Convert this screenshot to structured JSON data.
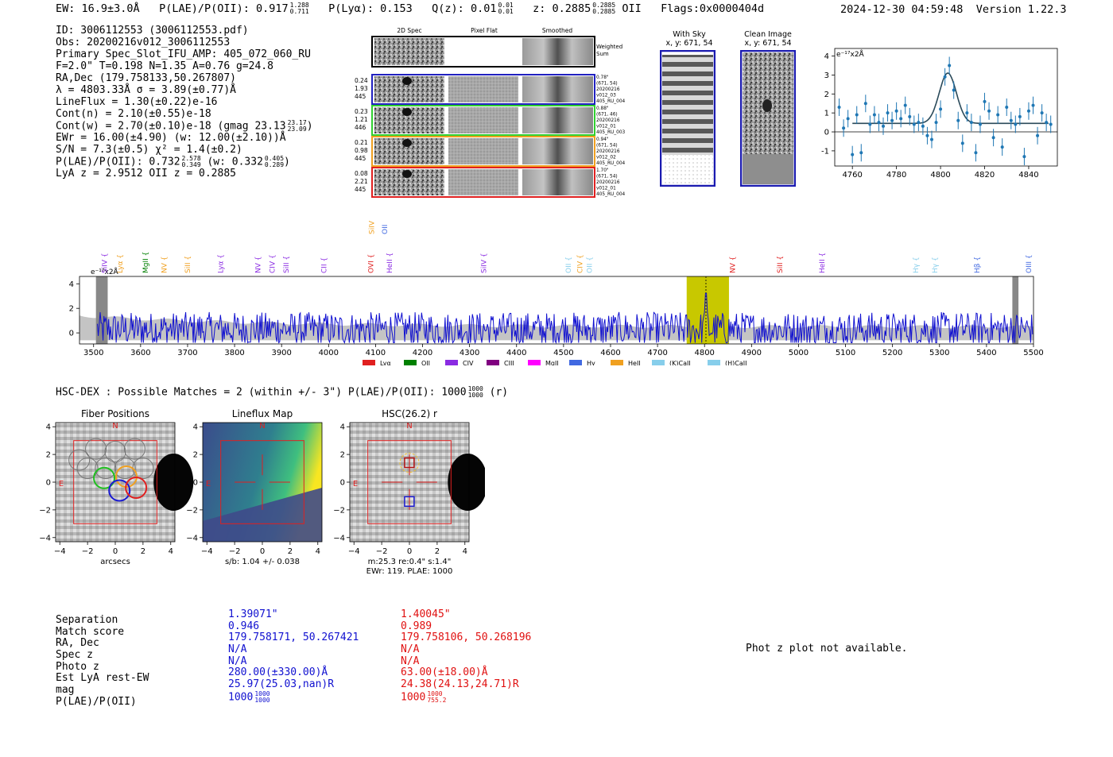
{
  "header": {
    "ew": "EW: 16.9±3.0Å",
    "plae_label": "P(LAE)/P(OII): 0.917",
    "plae_hi": "1.288",
    "plae_lo": "0.711",
    "plya": "P(Lyα): 0.153",
    "qz_label": "Q(z): 0.01",
    "qz_hi": "0.01",
    "qz_lo": "0.01",
    "z_label": "z: 0.2885",
    "z_hi": "0.2885",
    "z_lo": "0.2885",
    "z_line": "OII",
    "flags": "Flags:0x0000404d",
    "timestamp": "2024-12-30 04:59:48",
    "version": "Version 1.22.3"
  },
  "info": {
    "id": "ID: 3006112553 (3006112553.pdf)",
    "obs": "Obs: 20200216v012_3006112553",
    "primary": "Primary Spec_Slot_IFU_AMP: 405_072_060_RU",
    "fiber": "F=2.0\"  T=0.198  N=1.35  A=0.76  g=24.8",
    "radec": "RA,Dec (179.758133,50.267807)",
    "lambda": "λ = 4803.33Å  σ = 3.89(±0.77)Å",
    "lineflux": "LineFlux = 1.30(±0.22)e-16",
    "contn": "Cont(n) = 2.10(±0.55)e-18",
    "contw": "Cont(w) = 2.70(±0.10)e-18 (gmag 23.13",
    "contw_hi": "23.17",
    "contw_lo": "23.09",
    "ewr": "EWr = 16.00(±4.90) (w: 12.00(±2.10))Å",
    "sn": "S/N = 7.3(±0.5)  χ² = 1.4(±0.2)",
    "plae": "P(LAE)/P(OII): 0.732",
    "plae_hi": "2.578",
    "plae_lo": "0.349",
    "plae_w": "(w: 0.332",
    "plae_w_hi": "0.405",
    "plae_w_lo": "0.289",
    "lya_z": "LyA z = 2.9512   OII z = 0.2885"
  },
  "cutouts": {
    "col_2d": "2D Spec",
    "col_flat": "Pixel Flat",
    "col_smooth": "Smoothed",
    "weighted": "Weighted\nSum",
    "rows": [
      {
        "left": [
          "0.24",
          "1.93",
          "445"
        ],
        "right": [
          "0.78\"",
          "(671, 54)",
          "20200216",
          "v012_03",
          "405_RU_004"
        ],
        "color": "#2020c0"
      },
      {
        "left": [
          "0.23",
          "1.21",
          "446"
        ],
        "right": [
          "0.88\"",
          "(671, 46)",
          "20200216",
          "v012_01",
          "405_RU_003"
        ],
        "color": "#30d030"
      },
      {
        "left": [
          "0.21",
          "0.98",
          "445"
        ],
        "right": [
          "0.94\"",
          "(671, 54)",
          "20200216",
          "v012_02",
          "405_RU_004"
        ],
        "color": "#f0a020"
      },
      {
        "left": [
          "0.08",
          "2.21",
          "445"
        ],
        "right": [
          "1.70\"",
          "(671, 54)",
          "20200216",
          "v012_01",
          "405_RU_004"
        ],
        "color": "#e02020"
      }
    ],
    "with_sky": "With Sky",
    "with_sky_xy": "x, y: 671, 54",
    "clean": "Clean Image",
    "clean_xy": "x, y: 671, 54"
  },
  "zoom_chart": {
    "type": "line",
    "unit_label": "e⁻¹⁷x2Å",
    "xlim": [
      4752,
      4853
    ],
    "ylim": [
      -1.8,
      4.4
    ],
    "xticks": [
      4760,
      4780,
      4800,
      4820,
      4840
    ],
    "yticks": [
      -1,
      0,
      1,
      2,
      3,
      4
    ],
    "x": [
      4754,
      4756,
      4758,
      4760,
      4762,
      4764,
      4766,
      4768,
      4770,
      4772,
      4774,
      4776,
      4778,
      4780,
      4782,
      4784,
      4786,
      4788,
      4790,
      4792,
      4794,
      4796,
      4798,
      4800,
      4802,
      4804,
      4806,
      4808,
      4810,
      4812,
      4814,
      4816,
      4818,
      4820,
      4822,
      4824,
      4826,
      4828,
      4830,
      4832,
      4834,
      4836,
      4838,
      4840,
      4842,
      4844,
      4846,
      4848,
      4850
    ],
    "values": [
      1.3,
      0.2,
      0.7,
      -1.2,
      0.9,
      -1.1,
      1.5,
      0.4,
      0.9,
      0.5,
      0.3,
      1.0,
      0.6,
      1.1,
      0.7,
      1.4,
      0.8,
      0.4,
      0.5,
      0.3,
      -0.2,
      -0.4,
      0.5,
      1.2,
      2.9,
      3.5,
      2.2,
      0.6,
      -0.6,
      1.0,
      0.5,
      -1.1,
      0.4,
      1.6,
      1.1,
      -0.3,
      0.9,
      -0.8,
      1.3,
      0.6,
      0.4,
      0.8,
      -1.3,
      1.1,
      1.4,
      -0.2,
      1.0,
      0.5,
      0.4
    ],
    "fit_baseline": 0.45,
    "fit_peak": 3.1,
    "fit_center": 4803.3,
    "fit_sigma": 3.9
  },
  "line_labels": [
    {
      "name": "SiIV",
      "w": 3523,
      "color": "#8a2be2"
    },
    {
      "name": "Lyα",
      "w": 3556,
      "color": "#f0a020"
    },
    {
      "name": "MgII",
      "w": 3610,
      "color": "#008000"
    },
    {
      "name": "NV",
      "w": 3650,
      "color": "#f0a020"
    },
    {
      "name": "SiII",
      "w": 3700,
      "color": "#f0a020"
    },
    {
      "name": "Lyα",
      "w": 3770,
      "color": "#8a2be2"
    },
    {
      "name": "NV",
      "w": 3850,
      "color": "#8a2be2"
    },
    {
      "name": "CIV",
      "w": 3880,
      "color": "#8a2be2"
    },
    {
      "name": "SiII",
      "w": 3910,
      "color": "#8a2be2"
    },
    {
      "name": "CII",
      "w": 3990,
      "color": "#8a2be2"
    },
    {
      "name": "OVI",
      "w": 4090,
      "color": "#e02020"
    },
    {
      "name": "HeII",
      "w": 4130,
      "color": "#8a2be2"
    },
    {
      "name": "SiIV",
      "w": 4330,
      "color": "#8a2be2"
    },
    {
      "name": "OII",
      "w": 4510,
      "color": "#87ceeb"
    },
    {
      "name": "CIV",
      "w": 4535,
      "color": "#f0a020"
    },
    {
      "name": "OII",
      "w": 4555,
      "color": "#87ceeb"
    },
    {
      "name": "NV",
      "w": 4860,
      "color": "#e02020"
    },
    {
      "name": "SiII",
      "w": 4960,
      "color": "#e02020"
    },
    {
      "name": "HeII",
      "w": 5050,
      "color": "#8a2be2"
    },
    {
      "name": "Hγ",
      "w": 5250,
      "color": "#87ceeb"
    },
    {
      "name": "Hγ",
      "w": 5290,
      "color": "#87ceeb"
    },
    {
      "name": "Hβ",
      "w": 5380,
      "color": "#4169e1"
    },
    {
      "name": "OIII",
      "w": 5490,
      "color": "#4169e1"
    }
  ],
  "top_labels": [
    {
      "name": "SiIV",
      "w": 4092,
      "color": "#f0a020"
    },
    {
      "name": "OII",
      "w": 4120,
      "color": "#4169e1"
    }
  ],
  "full_spectrum": {
    "type": "line",
    "unit_label": "e⁻¹⁷x2Å",
    "xlim": [
      3470,
      5500
    ],
    "ylim": [
      -0.9,
      4.6
    ],
    "xticks": [
      3500,
      3600,
      3700,
      3800,
      3900,
      4000,
      4100,
      4200,
      4300,
      4400,
      4500,
      4600,
      4700,
      4800,
      4900,
      5000,
      5100,
      5200,
      5300,
      5400,
      5500
    ],
    "yticks": [
      0,
      2,
      4
    ],
    "highlight_range": [
      4762,
      4852
    ],
    "line_center": 4803,
    "legend": [
      {
        "name": "Lyα",
        "color": "#e02020"
      },
      {
        "name": "OII",
        "color": "#008000"
      },
      {
        "name": "CIV",
        "color": "#8a2be2"
      },
      {
        "name": "CIII",
        "color": "#800080"
      },
      {
        "name": "MgII",
        "color": "#ff00ff"
      },
      {
        "name": "Hγ",
        "color": "#4169e1"
      },
      {
        "name": "HeII",
        "color": "#f0a020"
      },
      {
        "name": "(K)CaII",
        "color": "#87ceeb"
      },
      {
        "name": "(H)CaII",
        "color": "#87ceeb"
      }
    ]
  },
  "hsc": {
    "title": "HSC-DEX : Possible Matches = 2 (within +/- 3\")  P(LAE)/P(OII): 1000",
    "title_hi": "1000",
    "title_lo": "1000",
    "title_band": "(r)",
    "panels": [
      {
        "title": "Fiber Positions",
        "xlabel": "arcsecs"
      },
      {
        "title": "Lineflux Map",
        "xlabel": "s/b: 1.04 +/- 0.038"
      },
      {
        "title": "HSC(26.2) r",
        "xlabel": "m:25.3  re:0.4\"  s:1.4\"",
        "xlabel2": "EWr: 119. PLAE: 1000"
      }
    ],
    "ticks": [
      -4,
      -2,
      0,
      2,
      4
    ],
    "north": "N",
    "east": "E"
  },
  "comparison": {
    "labels": [
      "Separation",
      "Match score",
      "RA, Dec",
      "Spec z",
      "Photo z",
      "Est LyA rest-EW",
      "mag",
      "P(LAE)/P(OII)"
    ],
    "blue": [
      "1.39071\"",
      "0.946",
      "179.758171, 50.267421",
      "N/A",
      "N/A",
      "280.00(±330.00)Å",
      "25.97(25.03,nan)R",
      "1000"
    ],
    "blue_frac": [
      "1000",
      "1000"
    ],
    "red": [
      "1.40045\"",
      "0.989",
      "179.758106, 50.268196",
      "N/A",
      "N/A",
      "63.00(±18.00)Å",
      "24.38(24.13,24.71)R",
      "1000"
    ],
    "red_frac": [
      "1000",
      "755.2"
    ],
    "blue_color": "#1010d0",
    "red_color": "#e01010",
    "photz_msg": "Phot z plot not available."
  }
}
